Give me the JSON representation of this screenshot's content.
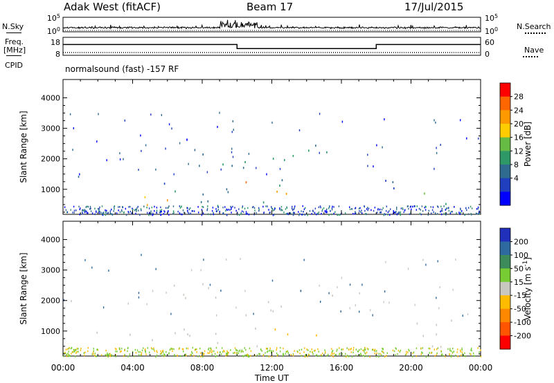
{
  "header": {
    "radar": "Adak West (fitACF)",
    "beam": "Beam 17",
    "date": "17/Jul/2015"
  },
  "left_labels": {
    "nsky": "N.Sky",
    "freq_top": "Freq.",
    "freq_bottom": "[MHz]",
    "cpid": "CPID"
  },
  "right_labels": {
    "nsearch": "N.Search",
    "nave": "Nave"
  },
  "cpid_text": "normalsound (fast) -157 RF",
  "chart_data": [
    {
      "type": "line",
      "panel": "noise",
      "left_ticks": [
        "10^5",
        "10^0"
      ],
      "right_ticks": [
        "10^5",
        "10^0"
      ],
      "series": [
        {
          "name": "N.Sky",
          "style": "solid-noisy"
        },
        {
          "name": "N.Search",
          "style": "dotted"
        }
      ],
      "note": "N.Sky shows a burst around 09:30-11:00 UT"
    },
    {
      "type": "line",
      "panel": "frequency",
      "left_ticks": [
        "18",
        "8"
      ],
      "right_ticks": [
        "60",
        "0"
      ],
      "series": [
        {
          "name": "Freq.",
          "x_hours": [
            0,
            10,
            10,
            18,
            18,
            24
          ],
          "y": [
            14,
            14,
            10.6,
            10.6,
            14,
            14
          ]
        },
        {
          "name": "Nave",
          "x_hours": [
            0,
            24
          ],
          "y": [
            10,
            10
          ]
        }
      ]
    },
    {
      "type": "heatmap",
      "panel": "power",
      "ylabel": "Slant Range [km]",
      "xlim_hours": [
        0,
        24
      ],
      "ylim_km": [
        180,
        4600
      ],
      "yticks": [
        1000,
        2000,
        3000,
        4000
      ],
      "colorbar": {
        "label": "Power [dB]",
        "ticks": [
          "28",
          "24",
          "20",
          "16",
          "12",
          "8",
          "4"
        ],
        "colors": [
          "#ff0000",
          "#ff6600",
          "#ff9900",
          "#ffcc00",
          "#66bb44",
          "#2e9966",
          "#2f6b8f",
          "#1f3fbf",
          "#0000ff"
        ]
      }
    },
    {
      "type": "heatmap",
      "panel": "velocity",
      "ylabel": "Slant Range [km]",
      "xlabel": "Time UT",
      "xlim_hours": [
        0,
        24
      ],
      "ylim_km": [
        180,
        4600
      ],
      "yticks": [
        1000,
        2000,
        3000,
        4000
      ],
      "xticks": [
        "00:00",
        "04:00",
        "08:00",
        "12:00",
        "16:00",
        "20:00",
        "00:00"
      ],
      "colorbar": {
        "label": "Velocity [m s",
        "label_sup": "-1",
        "label_end": "]",
        "ticks": [
          "200",
          "100",
          "50",
          "15",
          "-15",
          "-50",
          "-100",
          "-200"
        ],
        "colors": [
          "#2030bb",
          "#2e6aa0",
          "#3d8a5a",
          "#77cc33",
          "#c8c8c0",
          "#ffbb00",
          "#ff8800",
          "#ff5500",
          "#ff0000"
        ]
      }
    }
  ]
}
